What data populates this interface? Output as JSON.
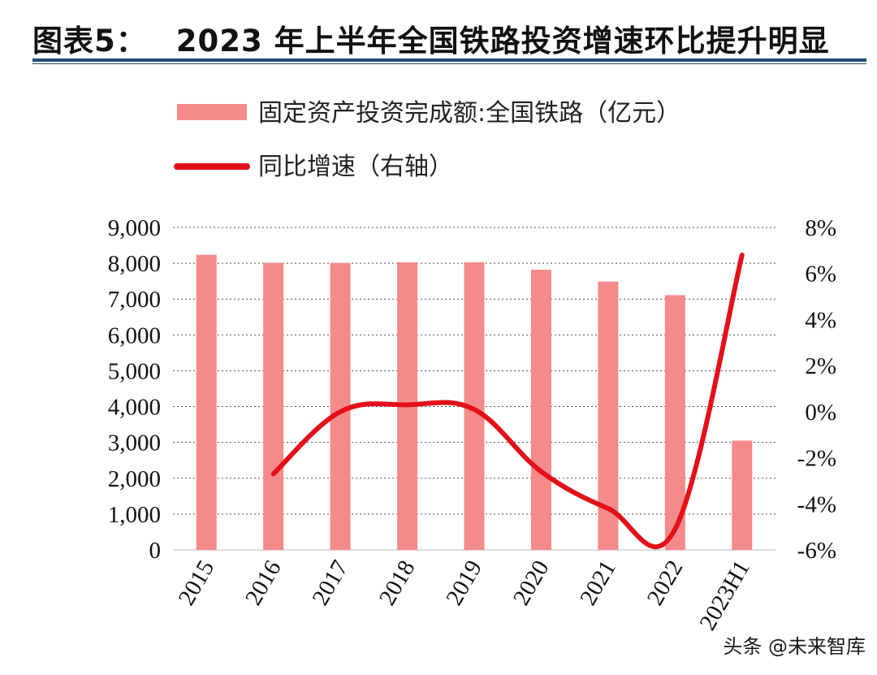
{
  "figure": {
    "label": "图表5：",
    "title": "2023 年上半年全国铁路投资增速环比提升明显"
  },
  "colors": {
    "bar": "#f48a8a",
    "line": "#e3101a",
    "grid": "#555555",
    "title_rule": "#1f4e79"
  },
  "chart_data": {
    "type": "bar",
    "title": "2023 年上半年全国铁路投资增速环比提升明显",
    "categories": [
      "2015",
      "2016",
      "2017",
      "2018",
      "2019",
      "2020",
      "2021",
      "2022",
      "2023H1"
    ],
    "series": [
      {
        "name": "固定资产投资完成额:全国铁路（亿元）",
        "type": "bar",
        "axis": "left",
        "values": [
          8238,
          8015,
          8010,
          8028,
          8029,
          7819,
          7489,
          7109,
          3050
        ]
      },
      {
        "name": "同比增速（右轴）",
        "type": "line",
        "axis": "right",
        "values": [
          null,
          -2.7,
          0.0,
          0.3,
          0.1,
          -2.6,
          -4.2,
          -5.1,
          6.8
        ]
      }
    ],
    "y_left": {
      "ylim": [
        0,
        9000
      ],
      "ticks": [
        0,
        1000,
        2000,
        3000,
        4000,
        5000,
        6000,
        7000,
        8000,
        9000
      ],
      "tick_labels": [
        "0",
        "1,000",
        "2,000",
        "3,000",
        "4,000",
        "5,000",
        "6,000",
        "7,000",
        "8,000",
        "9,000"
      ]
    },
    "y_right": {
      "ylim": [
        -6,
        8
      ],
      "ticks": [
        -6,
        -4,
        -2,
        0,
        2,
        4,
        6,
        8
      ],
      "tick_labels": [
        "-6%",
        "-4%",
        "-2%",
        "0%",
        "2%",
        "4%",
        "6%",
        "8%"
      ]
    },
    "grid": true,
    "legend_position": "top-left"
  },
  "watermark": "头条 @未来智库"
}
